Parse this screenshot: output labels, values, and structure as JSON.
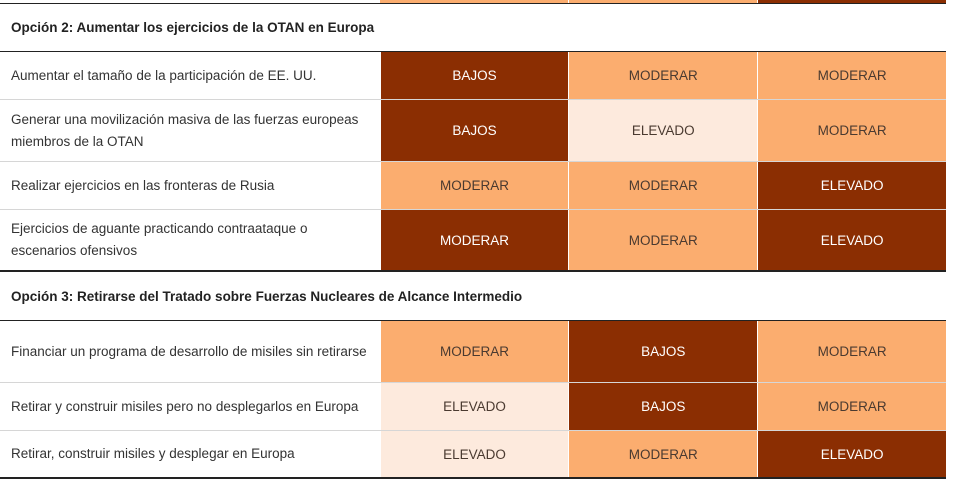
{
  "colors": {
    "dark": "#8b2e02",
    "mid": "#fbad6f",
    "light": "#fdeadd"
  },
  "sections": [
    {
      "title": "Opción 2: Aumentar los ejercicios de la OTAN en Europa",
      "rows": [
        {
          "label": "Aumentar el tamaño de la participación de EE. UU.",
          "cells": [
            {
              "text": "BAJOS",
              "level": "dark"
            },
            {
              "text": "MODERAR",
              "level": "mid"
            },
            {
              "text": "MODERAR",
              "level": "mid"
            }
          ]
        },
        {
          "label": "Generar una movilización masiva de las fuerzas europeas miembros de la OTAN",
          "cells": [
            {
              "text": "BAJOS",
              "level": "dark"
            },
            {
              "text": "ELEVADO",
              "level": "light"
            },
            {
              "text": "MODERAR",
              "level": "mid"
            }
          ]
        },
        {
          "label": "Realizar ejercicios en las fronteras de Rusia",
          "cells": [
            {
              "text": "MODERAR",
              "level": "mid"
            },
            {
              "text": "MODERAR",
              "level": "mid"
            },
            {
              "text": "ELEVADO",
              "level": "dark"
            }
          ]
        },
        {
          "label": "Ejercicios de aguante practicando contraataque o escenarios ofensivos",
          "cells": [
            {
              "text": "MODERAR",
              "level": "dark"
            },
            {
              "text": "MODERAR",
              "level": "mid"
            },
            {
              "text": "ELEVADO",
              "level": "dark"
            }
          ]
        }
      ]
    },
    {
      "title": "Opción 3: Retirarse del Tratado sobre Fuerzas Nucleares de Alcance Intermedio",
      "rows": [
        {
          "label": "Financiar un programa de desarrollo de misiles sin retirarse",
          "cells": [
            {
              "text": "MODERAR",
              "level": "mid"
            },
            {
              "text": "BAJOS",
              "level": "dark"
            },
            {
              "text": "MODERAR",
              "level": "mid"
            }
          ]
        },
        {
          "label": "Retirar y construir misiles pero no desplegarlos en Europa",
          "cells": [
            {
              "text": "ELEVADO",
              "level": "light"
            },
            {
              "text": "BAJOS",
              "level": "dark"
            },
            {
              "text": "MODERAR",
              "level": "mid"
            }
          ]
        },
        {
          "label": "Retirar, construir misiles y desplegar en Europa",
          "cells": [
            {
              "text": "ELEVADO",
              "level": "light"
            },
            {
              "text": "MODERAR",
              "level": "mid"
            },
            {
              "text": "ELEVADO",
              "level": "dark"
            }
          ]
        }
      ]
    }
  ]
}
